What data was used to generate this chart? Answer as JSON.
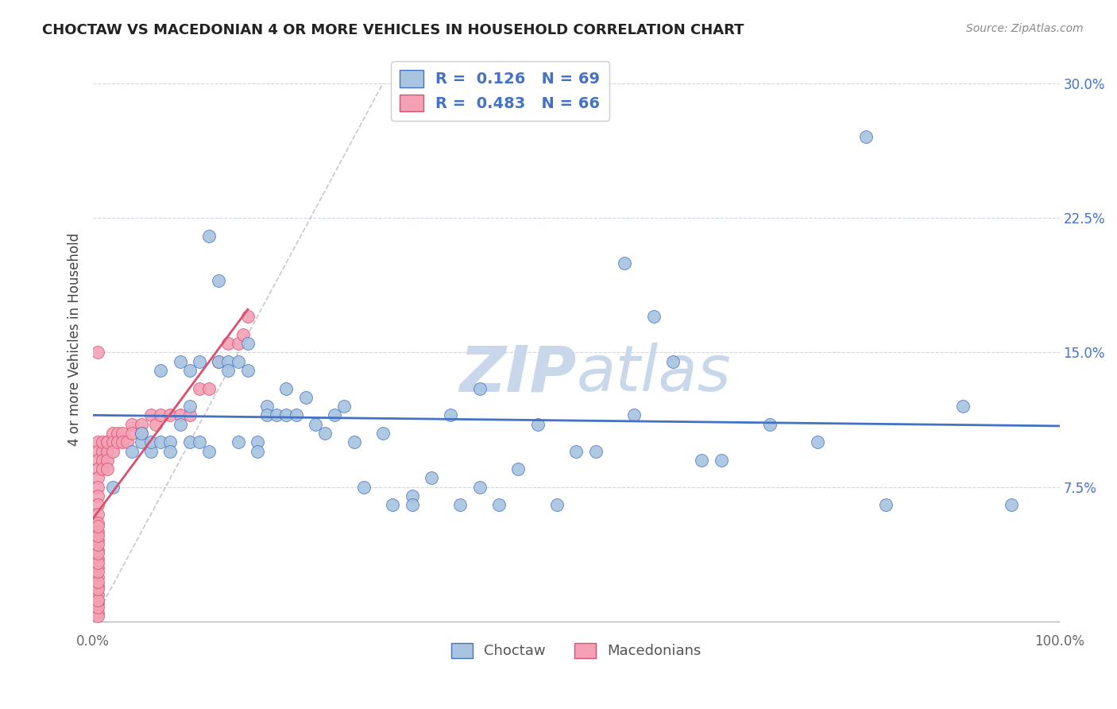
{
  "title": "CHOCTAW VS MACEDONIAN 4 OR MORE VEHICLES IN HOUSEHOLD CORRELATION CHART",
  "source": "Source: ZipAtlas.com",
  "ylabel": "4 or more Vehicles in Household",
  "ylim": [
    -0.005,
    0.32
  ],
  "xlim": [
    0.0,
    1.0
  ],
  "ytick_positions": [
    0.0,
    0.075,
    0.15,
    0.225,
    0.3
  ],
  "ytick_labels": [
    "",
    "7.5%",
    "15.0%",
    "22.5%",
    "30.0%"
  ],
  "xtick_positions": [
    0.0,
    0.25,
    0.5,
    0.75,
    1.0
  ],
  "xtick_labels": [
    "0.0%",
    "",
    "",
    "",
    "100.0%"
  ],
  "choctaw_color": "#a8c4e0",
  "macedonian_color": "#f4a0b5",
  "choctaw_line_color": "#4472c4",
  "macedonian_line_color": "#d94f6e",
  "diagonal_color": "#c8c8c8",
  "legend_R1": "0.126",
  "legend_N1": "69",
  "legend_R2": "0.483",
  "legend_N2": "66",
  "watermark_zip": "ZIP",
  "watermark_atlas": "atlas",
  "watermark_color": "#c8d8ea",
  "choctaw_x": [
    0.02,
    0.04,
    0.05,
    0.05,
    0.06,
    0.06,
    0.07,
    0.07,
    0.08,
    0.08,
    0.09,
    0.09,
    0.1,
    0.1,
    0.1,
    0.11,
    0.11,
    0.12,
    0.12,
    0.13,
    0.13,
    0.14,
    0.14,
    0.15,
    0.15,
    0.16,
    0.16,
    0.17,
    0.17,
    0.18,
    0.18,
    0.19,
    0.2,
    0.2,
    0.21,
    0.22,
    0.23,
    0.24,
    0.25,
    0.26,
    0.27,
    0.28,
    0.3,
    0.31,
    0.33,
    0.33,
    0.35,
    0.37,
    0.38,
    0.4,
    0.4,
    0.42,
    0.44,
    0.46,
    0.5,
    0.55,
    0.58,
    0.6,
    0.63,
    0.8,
    0.82,
    0.9,
    0.95,
    0.56,
    0.48,
    0.52,
    0.65,
    0.7,
    0.75
  ],
  "choctaw_y": [
    0.075,
    0.095,
    0.1,
    0.105,
    0.095,
    0.1,
    0.14,
    0.1,
    0.1,
    0.095,
    0.145,
    0.11,
    0.14,
    0.12,
    0.1,
    0.145,
    0.1,
    0.215,
    0.095,
    0.19,
    0.145,
    0.145,
    0.14,
    0.145,
    0.1,
    0.155,
    0.14,
    0.1,
    0.095,
    0.12,
    0.115,
    0.115,
    0.13,
    0.115,
    0.115,
    0.125,
    0.11,
    0.105,
    0.115,
    0.12,
    0.1,
    0.075,
    0.105,
    0.065,
    0.07,
    0.065,
    0.08,
    0.115,
    0.065,
    0.075,
    0.13,
    0.065,
    0.085,
    0.11,
    0.095,
    0.2,
    0.17,
    0.145,
    0.09,
    0.27,
    0.065,
    0.12,
    0.065,
    0.115,
    0.065,
    0.095,
    0.09,
    0.11,
    0.1
  ],
  "macedonian_x": [
    0.005,
    0.005,
    0.005,
    0.005,
    0.005,
    0.005,
    0.005,
    0.005,
    0.005,
    0.005,
    0.005,
    0.005,
    0.005,
    0.005,
    0.005,
    0.005,
    0.005,
    0.005,
    0.005,
    0.005,
    0.01,
    0.01,
    0.01,
    0.01,
    0.015,
    0.015,
    0.015,
    0.015,
    0.015,
    0.02,
    0.02,
    0.02,
    0.025,
    0.025,
    0.03,
    0.03,
    0.035,
    0.04,
    0.04,
    0.05,
    0.05,
    0.06,
    0.065,
    0.07,
    0.08,
    0.09,
    0.1,
    0.11,
    0.12,
    0.13,
    0.14,
    0.15,
    0.155,
    0.16,
    0.005,
    0.005,
    0.005,
    0.005,
    0.005,
    0.005,
    0.005,
    0.005,
    0.005,
    0.005,
    0.005,
    0.005
  ],
  "macedonian_y": [
    0.1,
    0.095,
    0.09,
    0.085,
    0.08,
    0.075,
    0.07,
    0.065,
    0.06,
    0.055,
    0.05,
    0.045,
    0.04,
    0.035,
    0.03,
    0.025,
    0.02,
    0.015,
    0.01,
    0.15,
    0.095,
    0.09,
    0.085,
    0.1,
    0.1,
    0.095,
    0.09,
    0.085,
    0.1,
    0.105,
    0.1,
    0.095,
    0.105,
    0.1,
    0.105,
    0.1,
    0.1,
    0.11,
    0.105,
    0.11,
    0.105,
    0.115,
    0.11,
    0.115,
    0.115,
    0.115,
    0.115,
    0.13,
    0.13,
    0.145,
    0.155,
    0.155,
    0.16,
    0.17,
    0.005,
    0.003,
    0.008,
    0.012,
    0.018,
    0.022,
    0.028,
    0.033,
    0.038,
    0.043,
    0.048,
    0.053
  ]
}
